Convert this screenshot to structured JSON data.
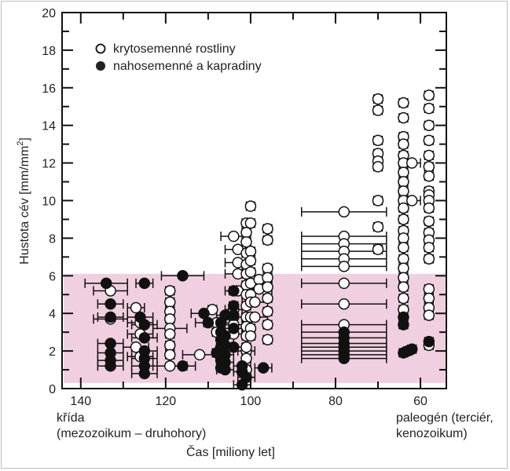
{
  "chart_data": {
    "type": "scatter",
    "title": "",
    "xlabel": "Čas [miliony let]",
    "ylabel_main": "Hustota cév [mm/mm",
    "ylabel_sup": "2",
    "ylabel_end": "]",
    "xlim": [
      144.4,
      53.9
    ],
    "ylim": [
      0,
      20
    ],
    "x_reversed": true,
    "x_ticks": [
      140,
      120,
      100,
      80,
      60
    ],
    "x_tick_labels": [
      "140",
      "120",
      "100",
      "80",
      "60"
    ],
    "y_ticks": [
      0,
      2,
      4,
      6,
      8,
      10,
      12,
      14,
      16,
      18,
      20
    ],
    "y_tick_labels": [
      "0",
      "2",
      "4",
      "6",
      "8",
      "10",
      "12",
      "14",
      "16",
      "18",
      "20"
    ],
    "shaded_region": {
      "x": [
        144,
        54
      ],
      "y": [
        0.3,
        6.1
      ],
      "color": "#f0cfe0"
    },
    "era_labels": {
      "left_line1": "křída",
      "left_line2": "(mezozoikum – druhohory)",
      "right_line1": "paleogén (terciér,",
      "right_line2": "kenozoikum)"
    },
    "legend": {
      "position": "top-left",
      "entries": [
        {
          "label": "krytosemenné rostliny",
          "marker": "open-circle"
        },
        {
          "label": "nahosemenné a kapradiny",
          "marker": "filled-circle"
        }
      ]
    },
    "series": [
      {
        "name": "krytosemenné rostliny",
        "marker": "open-circle",
        "points": [
          [
            133,
            5.2,
            4
          ],
          [
            133,
            3.7,
            4
          ],
          [
            127,
            4.3,
            2
          ],
          [
            126,
            3.5,
            3
          ],
          [
            126,
            2.9,
            3
          ],
          [
            127,
            2.2,
            3
          ],
          [
            126,
            1.7,
            3
          ],
          [
            119,
            5.2,
            1
          ],
          [
            119,
            4.6,
            1
          ],
          [
            119,
            4.1,
            1
          ],
          [
            119,
            3.7,
            1
          ],
          [
            119,
            3.2,
            4
          ],
          [
            119,
            2.9,
            1
          ],
          [
            119,
            2.3,
            1
          ],
          [
            119,
            1.8,
            1
          ],
          [
            119,
            1.2,
            4
          ],
          [
            112,
            1.8,
            4
          ],
          [
            109,
            4.2,
            1
          ],
          [
            108,
            3.5,
            3
          ],
          [
            108,
            3.0,
            1
          ],
          [
            104,
            4.2,
            2
          ],
          [
            104,
            3.8,
            2
          ],
          [
            104,
            3.4,
            2
          ],
          [
            104,
            2.9,
            2
          ],
          [
            101,
            2.0,
            2
          ],
          [
            104,
            8.1,
            3
          ],
          [
            103,
            7.4,
            3
          ],
          [
            103,
            6.7,
            3
          ],
          [
            103,
            6.1,
            3
          ],
          [
            103,
            5.2,
            3
          ],
          [
            101,
            8.8,
            1
          ],
          [
            101,
            8.3,
            1
          ],
          [
            101,
            7.8,
            1
          ],
          [
            101,
            7.2,
            1
          ],
          [
            101,
            6.6,
            1
          ],
          [
            101,
            6.1,
            1
          ],
          [
            101,
            5.5,
            1
          ],
          [
            101,
            5.0,
            1
          ],
          [
            101,
            4.4,
            1
          ],
          [
            101,
            3.8,
            1
          ],
          [
            101,
            3.3,
            1
          ],
          [
            101,
            2.8,
            1
          ],
          [
            101,
            2.2,
            1
          ],
          [
            101,
            1.6,
            1
          ],
          [
            101,
            1.0,
            1
          ],
          [
            100,
            9.7,
            1
          ],
          [
            100,
            8.8,
            1
          ],
          [
            100,
            7.3,
            1
          ],
          [
            100,
            6.8,
            1
          ],
          [
            100,
            6.2,
            1
          ],
          [
            100,
            5.6,
            1
          ],
          [
            100,
            5.0,
            1
          ],
          [
            100,
            4.6,
            1
          ],
          [
            100,
            3.8,
            1
          ],
          [
            100,
            3.2,
            1
          ],
          [
            100,
            2.8,
            1
          ],
          [
            98,
            5.8,
            3
          ],
          [
            98,
            5.3,
            3
          ],
          [
            99,
            4.6,
            3
          ],
          [
            99,
            3.8,
            3
          ],
          [
            96,
            8.5,
            1
          ],
          [
            96,
            7.9,
            1
          ],
          [
            96,
            6.4,
            1
          ],
          [
            96,
            5.9,
            1
          ],
          [
            96,
            5.4,
            1
          ],
          [
            96,
            4.8,
            1
          ],
          [
            96,
            4.1,
            1
          ],
          [
            96,
            3.4,
            1
          ],
          [
            96,
            2.6,
            1
          ],
          [
            78,
            9.4,
            10
          ],
          [
            78,
            8.1,
            10
          ],
          [
            78,
            7.7,
            10
          ],
          [
            78,
            7.3,
            10
          ],
          [
            78,
            6.9,
            10
          ],
          [
            78,
            6.5,
            10
          ],
          [
            78,
            5.6,
            10
          ],
          [
            78,
            4.5,
            10
          ],
          [
            78,
            3.4,
            10
          ],
          [
            70,
            15.4,
            1
          ],
          [
            70,
            14.8,
            1
          ],
          [
            70,
            13.2,
            1
          ],
          [
            70,
            12.5,
            1
          ],
          [
            70,
            12.1,
            1
          ],
          [
            70,
            11.8,
            1
          ],
          [
            70,
            10.0,
            1
          ],
          [
            70,
            8.6,
            1
          ],
          [
            70,
            7.4,
            1
          ],
          [
            64,
            15.2,
            1
          ],
          [
            64,
            14.4,
            1
          ],
          [
            64,
            13.4,
            1
          ],
          [
            64,
            13.0,
            1
          ],
          [
            64,
            12.4,
            1
          ],
          [
            64,
            12.0,
            1
          ],
          [
            64,
            11.5,
            1
          ],
          [
            64,
            11.0,
            1
          ],
          [
            64,
            10.5,
            1
          ],
          [
            64,
            10.0,
            1
          ],
          [
            64,
            9.6,
            1
          ],
          [
            64,
            9.0,
            1
          ],
          [
            64,
            8.4,
            1
          ],
          [
            64,
            8.0,
            1
          ],
          [
            64,
            7.5,
            1
          ],
          [
            64,
            6.9,
            1
          ],
          [
            64,
            6.4,
            1
          ],
          [
            64,
            5.9,
            1
          ],
          [
            64,
            5.4,
            1
          ],
          [
            64,
            4.8,
            1
          ],
          [
            64,
            4.2,
            1
          ],
          [
            62,
            12.0,
            2
          ],
          [
            62,
            10.0,
            2
          ],
          [
            58,
            15.6,
            1
          ],
          [
            58,
            14.9,
            1
          ],
          [
            58,
            14.0,
            1
          ],
          [
            58,
            13.2,
            1
          ],
          [
            58,
            12.4,
            1
          ],
          [
            58,
            11.8,
            1
          ],
          [
            58,
            11.3,
            1
          ],
          [
            58,
            10.5,
            1
          ],
          [
            58,
            10.3,
            1
          ],
          [
            58,
            10.0,
            1
          ],
          [
            58,
            9.6,
            1
          ],
          [
            58,
            8.9,
            1
          ],
          [
            58,
            8.3,
            1
          ],
          [
            58,
            7.9,
            1
          ],
          [
            58,
            7.5,
            1
          ],
          [
            58,
            6.9,
            1
          ],
          [
            58,
            5.3,
            1
          ],
          [
            58,
            4.8,
            1
          ],
          [
            58,
            4.3,
            1
          ],
          [
            58,
            3.9,
            1
          ],
          [
            58,
            2.3,
            1
          ]
        ]
      },
      {
        "name": "nahosemenné a kapradiny",
        "marker": "filled-circle",
        "points": [
          [
            134,
            5.6,
            5
          ],
          [
            133,
            4.5,
            3
          ],
          [
            133,
            3.8,
            3
          ],
          [
            133,
            2.4,
            3
          ],
          [
            133,
            1.9,
            3
          ],
          [
            133,
            1.5,
            3
          ],
          [
            133,
            1.2,
            3
          ],
          [
            125,
            5.6,
            2
          ],
          [
            126,
            3.8,
            3
          ],
          [
            125,
            3.4,
            3
          ],
          [
            125,
            2.7,
            3
          ],
          [
            125,
            2.0,
            3
          ],
          [
            125,
            1.6,
            3
          ],
          [
            125,
            1.2,
            3
          ],
          [
            125,
            0.8,
            3
          ],
          [
            116,
            6.0,
            5
          ],
          [
            116,
            1.2,
            3
          ],
          [
            111,
            4.0,
            3
          ],
          [
            110,
            3.5,
            3
          ],
          [
            107,
            3.5,
            1
          ],
          [
            107,
            3.0,
            1
          ],
          [
            107,
            2.6,
            1
          ],
          [
            107,
            2.2,
            1
          ],
          [
            107,
            1.9,
            1
          ],
          [
            107,
            1.5,
            1
          ],
          [
            107,
            1.1,
            1
          ],
          [
            108,
            1.9,
            1
          ],
          [
            106,
            3.9,
            2
          ],
          [
            106,
            2.8,
            2
          ],
          [
            106,
            2.3,
            2
          ],
          [
            106,
            1.8,
            2
          ],
          [
            106,
            1.4,
            2
          ],
          [
            106,
            1.0,
            2
          ],
          [
            104,
            5.2,
            1
          ],
          [
            104,
            4.4,
            1
          ],
          [
            104,
            3.9,
            1
          ],
          [
            104,
            3.2,
            2
          ],
          [
            104,
            2.2,
            2
          ],
          [
            102,
            1.2,
            2
          ],
          [
            102,
            0.9,
            2
          ],
          [
            102,
            0.2,
            2
          ],
          [
            101,
            0.6,
            2
          ],
          [
            97,
            1.1,
            2
          ],
          [
            78,
            3.0,
            10
          ],
          [
            78,
            2.7,
            10
          ],
          [
            78,
            2.4,
            10
          ],
          [
            78,
            2.2,
            10
          ],
          [
            78,
            2.0,
            10
          ],
          [
            78,
            1.8,
            10
          ],
          [
            78,
            1.6,
            10
          ],
          [
            64,
            3.8,
            1
          ],
          [
            64,
            3.4,
            1
          ],
          [
            64,
            1.9,
            1
          ],
          [
            63,
            2.0,
            1
          ],
          [
            62,
            2.1,
            1
          ],
          [
            58,
            2.5,
            1
          ]
        ]
      }
    ]
  }
}
